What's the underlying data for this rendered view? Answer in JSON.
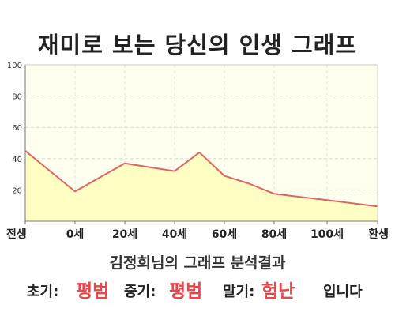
{
  "title": "재미로 보는 당신의 인생 그래프",
  "summary": "김정희님의 그래프 분석결과",
  "result": {
    "early_label": "초기:",
    "early_value": "평범",
    "middle_label": "중기:",
    "middle_value": "평범",
    "late_label": "말기:",
    "late_value": "험난",
    "ending": "입니다"
  },
  "colors": {
    "line": "#e06464",
    "fill": "#ffffc4",
    "plot_background": "#fffff0",
    "accent_text": "#e8474a"
  },
  "chart_data": {
    "type": "area",
    "title": "",
    "xlabel": "",
    "ylabel": "",
    "ylim": [
      0,
      100
    ],
    "yticks": [
      20,
      40,
      60,
      80,
      100
    ],
    "x_ticks": [
      "전생",
      "0세",
      "20세",
      "40세",
      "60세",
      "80세",
      "100세",
      "환생"
    ],
    "grid": true,
    "legend": "none",
    "series": [
      {
        "points": [
          {
            "x": "전생",
            "y": 45
          },
          {
            "x": "0세",
            "y": 19
          },
          {
            "x": "20세",
            "y": 37
          },
          {
            "x": "40세",
            "y": 32
          },
          {
            "x": "50세",
            "y": 44
          },
          {
            "x": "60세",
            "y": 29
          },
          {
            "x": "70세",
            "y": 24
          },
          {
            "x": "80세",
            "y": 17.5
          },
          {
            "x": "100세",
            "y": 13.5
          },
          {
            "x": "환생",
            "y": 9.5
          }
        ]
      }
    ]
  }
}
